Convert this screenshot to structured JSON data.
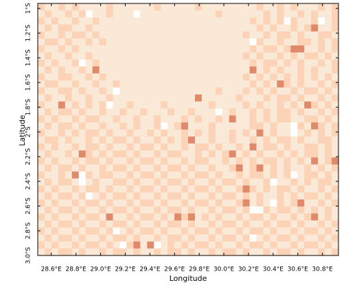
{
  "chart_data": {
    "type": "raster",
    "x_label": "Longitude",
    "y_label": "Latitude",
    "xlim": [
      28.49,
      30.93
    ],
    "ylim": [
      -3.0,
      -0.96
    ],
    "xticks": [
      {
        "value": 28.6,
        "label": "28.6°E"
      },
      {
        "value": 28.8,
        "label": "28.8°E"
      },
      {
        "value": 29.0,
        "label": "29.0°E"
      },
      {
        "value": 29.2,
        "label": "29.2°E"
      },
      {
        "value": 29.4,
        "label": "29.4°E"
      },
      {
        "value": 29.6,
        "label": "29.6°E"
      },
      {
        "value": 29.8,
        "label": "29.8°E"
      },
      {
        "value": 30.0,
        "label": "30.0°E"
      },
      {
        "value": 30.2,
        "label": "30.2°E"
      },
      {
        "value": 30.4,
        "label": "30.4°E"
      },
      {
        "value": 30.6,
        "label": "30.6°E"
      },
      {
        "value": 30.8,
        "label": "30.8°E"
      }
    ],
    "yticks": [
      {
        "value": -1,
        "label": "1°S"
      },
      {
        "value": -1.2,
        "label": "1.2°S"
      },
      {
        "value": -1.4,
        "label": "1.4°S"
      },
      {
        "value": -1.6,
        "label": "1.6°S"
      },
      {
        "value": -1.8,
        "label": "1.8°S"
      },
      {
        "value": -2,
        "label": "2°S"
      },
      {
        "value": -2.2,
        "label": "2.2°S"
      },
      {
        "value": -2.4,
        "label": "2.4°S"
      },
      {
        "value": -2.6,
        "label": "2.6°S"
      },
      {
        "value": -2.8,
        "label": "2.8°S"
      },
      {
        "value": -3.0,
        "label": "3.0°S"
      }
    ],
    "palette": [
      "#ffffff",
      "#fbe9d7",
      "#fcd3b6",
      "#e08a6c"
    ],
    "z": [
      [
        2,
        1,
        1,
        2,
        1,
        2,
        1,
        1,
        1,
        1,
        2,
        1,
        1,
        1,
        1,
        1,
        1,
        2,
        1,
        1,
        1,
        1,
        1,
        2,
        1,
        1,
        1,
        1,
        1,
        1,
        1,
        1,
        2,
        1,
        1,
        2,
        1,
        2,
        1,
        1,
        1,
        2,
        1,
        2
      ],
      [
        1,
        2,
        1,
        1,
        2,
        1,
        2,
        0,
        1,
        1,
        2,
        1,
        1,
        1,
        0,
        1,
        1,
        1,
        1,
        1,
        1,
        1,
        1,
        1,
        1,
        1,
        2,
        1,
        1,
        1,
        1,
        1,
        1,
        2,
        1,
        2,
        1,
        1,
        2,
        1,
        2,
        1,
        1,
        2
      ],
      [
        2,
        1,
        2,
        1,
        1,
        2,
        1,
        1,
        2,
        1,
        1,
        1,
        1,
        1,
        1,
        1,
        1,
        1,
        1,
        1,
        1,
        1,
        1,
        1,
        1,
        1,
        1,
        1,
        1,
        1,
        1,
        2,
        1,
        2,
        1,
        2,
        0,
        2,
        1,
        1,
        2,
        0,
        1,
        2
      ],
      [
        1,
        2,
        1,
        2,
        2,
        1,
        1,
        2,
        1,
        1,
        1,
        1,
        1,
        1,
        1,
        1,
        1,
        1,
        1,
        1,
        1,
        1,
        1,
        1,
        1,
        1,
        1,
        1,
        1,
        1,
        1,
        1,
        2,
        1,
        2,
        1,
        1,
        2,
        1,
        2,
        3,
        1,
        1,
        2
      ],
      [
        2,
        1,
        1,
        2,
        1,
        2,
        2,
        1,
        2,
        1,
        1,
        1,
        1,
        1,
        1,
        1,
        1,
        1,
        1,
        1,
        1,
        1,
        1,
        1,
        1,
        1,
        1,
        1,
        1,
        1,
        2,
        1,
        1,
        2,
        1,
        2,
        2,
        1,
        2,
        1,
        1,
        2,
        2,
        1
      ],
      [
        1,
        2,
        2,
        1,
        2,
        1,
        1,
        2,
        1,
        2,
        1,
        1,
        1,
        1,
        1,
        1,
        1,
        1,
        1,
        1,
        1,
        1,
        1,
        1,
        1,
        1,
        1,
        1,
        1,
        1,
        1,
        0,
        2,
        1,
        1,
        2,
        1,
        1,
        2,
        2,
        1,
        2,
        1,
        2
      ],
      [
        2,
        1,
        1,
        2,
        1,
        2,
        1,
        1,
        1,
        1,
        1,
        1,
        1,
        1,
        1,
        1,
        1,
        1,
        1,
        1,
        1,
        1,
        1,
        1,
        1,
        1,
        1,
        1,
        1,
        1,
        1,
        2,
        1,
        2,
        2,
        1,
        2,
        3,
        3,
        1,
        1,
        2,
        1,
        2
      ],
      [
        1,
        2,
        1,
        1,
        2,
        1,
        1,
        2,
        1,
        1,
        1,
        1,
        1,
        1,
        1,
        1,
        1,
        1,
        1,
        1,
        1,
        1,
        1,
        1,
        1,
        1,
        1,
        1,
        1,
        1,
        2,
        1,
        2,
        1,
        1,
        2,
        1,
        2,
        1,
        2,
        2,
        1,
        2,
        1
      ],
      [
        2,
        1,
        2,
        1,
        1,
        2,
        0,
        1,
        2,
        1,
        1,
        1,
        1,
        1,
        1,
        1,
        1,
        1,
        1,
        1,
        1,
        1,
        1,
        1,
        1,
        1,
        1,
        1,
        1,
        1,
        1,
        2,
        1,
        2,
        2,
        1,
        2,
        1,
        2,
        1,
        1,
        2,
        1,
        2
      ],
      [
        1,
        2,
        1,
        2,
        1,
        1,
        2,
        1,
        3,
        1,
        1,
        1,
        1,
        1,
        1,
        1,
        1,
        1,
        1,
        1,
        1,
        1,
        1,
        1,
        1,
        1,
        1,
        1,
        1,
        1,
        1,
        3,
        1,
        2,
        1,
        2,
        1,
        1,
        2,
        1,
        2,
        1,
        1,
        2
      ],
      [
        2,
        1,
        1,
        2,
        2,
        1,
        1,
        2,
        1,
        2,
        1,
        1,
        1,
        1,
        1,
        1,
        1,
        1,
        1,
        1,
        1,
        1,
        1,
        1,
        1,
        1,
        1,
        1,
        1,
        1,
        2,
        1,
        2,
        1,
        2,
        1,
        2,
        1,
        2,
        1,
        2,
        1,
        2,
        1
      ],
      [
        1,
        2,
        2,
        1,
        1,
        2,
        1,
        1,
        2,
        1,
        1,
        2,
        1,
        1,
        1,
        1,
        1,
        1,
        1,
        1,
        1,
        1,
        1,
        1,
        1,
        1,
        1,
        1,
        1,
        1,
        1,
        2,
        1,
        2,
        1,
        3,
        2,
        1,
        2,
        1,
        1,
        2,
        1,
        2
      ],
      [
        2,
        1,
        1,
        2,
        2,
        1,
        2,
        1,
        1,
        2,
        1,
        0,
        1,
        1,
        1,
        1,
        1,
        1,
        1,
        1,
        1,
        1,
        1,
        1,
        1,
        1,
        2,
        1,
        1,
        1,
        2,
        1,
        2,
        1,
        2,
        1,
        1,
        2,
        1,
        2,
        2,
        1,
        2,
        1
      ],
      [
        1,
        2,
        1,
        1,
        2,
        1,
        1,
        2,
        1,
        1,
        2,
        1,
        1,
        1,
        1,
        1,
        1,
        1,
        1,
        1,
        1,
        1,
        1,
        3,
        1,
        1,
        1,
        1,
        1,
        2,
        1,
        1,
        1,
        2,
        1,
        2,
        2,
        1,
        2,
        1,
        1,
        2,
        1,
        2
      ],
      [
        2,
        1,
        1,
        3,
        1,
        2,
        1,
        2,
        1,
        2,
        0,
        1,
        1,
        2,
        1,
        1,
        1,
        1,
        2,
        1,
        1,
        1,
        1,
        1,
        1,
        2,
        1,
        1,
        1,
        1,
        2,
        1,
        2,
        1,
        1,
        2,
        1,
        2,
        1,
        3,
        2,
        1,
        2,
        1
      ],
      [
        1,
        2,
        1,
        2,
        2,
        1,
        2,
        1,
        1,
        2,
        1,
        1,
        2,
        1,
        1,
        2,
        1,
        1,
        1,
        2,
        1,
        1,
        2,
        1,
        1,
        1,
        0,
        1,
        2,
        1,
        1,
        2,
        1,
        2,
        1,
        2,
        2,
        1,
        2,
        1,
        1,
        2,
        1,
        2
      ],
      [
        2,
        1,
        2,
        1,
        1,
        2,
        1,
        2,
        2,
        1,
        1,
        2,
        1,
        1,
        2,
        1,
        1,
        2,
        1,
        1,
        1,
        2,
        1,
        2,
        1,
        1,
        2,
        1,
        3,
        1,
        1,
        2,
        1,
        2,
        1,
        2,
        2,
        1,
        1,
        2,
        2,
        1,
        2,
        1
      ],
      [
        1,
        2,
        1,
        2,
        2,
        1,
        2,
        1,
        1,
        2,
        1,
        1,
        2,
        1,
        2,
        1,
        1,
        2,
        0,
        1,
        2,
        3,
        1,
        1,
        1,
        2,
        1,
        1,
        1,
        1,
        1,
        2,
        2,
        1,
        2,
        1,
        1,
        0,
        2,
        1,
        3,
        2,
        1,
        2
      ],
      [
        2,
        1,
        1,
        2,
        1,
        2,
        1,
        2,
        2,
        1,
        2,
        1,
        1,
        2,
        1,
        1,
        2,
        1,
        2,
        1,
        1,
        2,
        1,
        2,
        1,
        2,
        1,
        1,
        2,
        1,
        2,
        1,
        3,
        1,
        2,
        1,
        1,
        0,
        1,
        2,
        1,
        2,
        1,
        2
      ],
      [
        1,
        2,
        2,
        1,
        2,
        1,
        1,
        2,
        1,
        2,
        1,
        2,
        2,
        1,
        2,
        1,
        1,
        2,
        1,
        2,
        1,
        2,
        3,
        1,
        1,
        2,
        1,
        1,
        2,
        1,
        1,
        2,
        1,
        2,
        1,
        2,
        2,
        1,
        2,
        1,
        1,
        2,
        2,
        1
      ],
      [
        2,
        1,
        2,
        1,
        1,
        2,
        1,
        2,
        2,
        1,
        2,
        1,
        1,
        2,
        1,
        2,
        2,
        1,
        2,
        1,
        1,
        2,
        1,
        2,
        2,
        1,
        2,
        1,
        1,
        2,
        1,
        3,
        1,
        2,
        2,
        1,
        2,
        1,
        1,
        2,
        2,
        1,
        2,
        1
      ],
      [
        1,
        2,
        1,
        1,
        2,
        1,
        3,
        2,
        1,
        2,
        1,
        2,
        2,
        1,
        2,
        1,
        1,
        2,
        1,
        2,
        2,
        1,
        1,
        2,
        1,
        2,
        1,
        2,
        3,
        1,
        2,
        1,
        2,
        1,
        1,
        2,
        1,
        2,
        1,
        2,
        2,
        1,
        2,
        1
      ],
      [
        2,
        1,
        2,
        1,
        1,
        2,
        1,
        2,
        2,
        1,
        2,
        1,
        1,
        2,
        1,
        2,
        2,
        1,
        2,
        1,
        1,
        2,
        1,
        2,
        2,
        1,
        1,
        2,
        1,
        2,
        1,
        2,
        1,
        2,
        2,
        1,
        2,
        1,
        2,
        1,
        3,
        1,
        2,
        3
      ],
      [
        1,
        2,
        1,
        2,
        2,
        1,
        2,
        1,
        1,
        2,
        1,
        2,
        2,
        1,
        2,
        1,
        1,
        2,
        1,
        2,
        2,
        1,
        2,
        1,
        1,
        2,
        1,
        1,
        2,
        3,
        1,
        2,
        3,
        1,
        2,
        1,
        2,
        1,
        1,
        2,
        1,
        2,
        1,
        2
      ],
      [
        2,
        1,
        1,
        2,
        1,
        3,
        0,
        2,
        1,
        2,
        2,
        1,
        1,
        2,
        1,
        2,
        2,
        1,
        2,
        1,
        1,
        2,
        1,
        2,
        2,
        1,
        2,
        1,
        1,
        2,
        1,
        2,
        2,
        1,
        2,
        1,
        2,
        0,
        1,
        2,
        2,
        1,
        2,
        1
      ],
      [
        1,
        2,
        1,
        2,
        2,
        1,
        0,
        1,
        2,
        1,
        1,
        2,
        2,
        1,
        2,
        1,
        1,
        2,
        1,
        2,
        2,
        1,
        2,
        1,
        1,
        2,
        1,
        2,
        2,
        1,
        2,
        1,
        1,
        2,
        0,
        1,
        1,
        2,
        1,
        2,
        1,
        2,
        2,
        1
      ],
      [
        2,
        1,
        2,
        1,
        1,
        2,
        1,
        2,
        2,
        1,
        2,
        1,
        1,
        2,
        1,
        2,
        2,
        1,
        2,
        1,
        1,
        2,
        1,
        2,
        2,
        1,
        2,
        1,
        1,
        2,
        3,
        2,
        1,
        2,
        1,
        2,
        2,
        1,
        2,
        1,
        1,
        2,
        1,
        2
      ],
      [
        1,
        2,
        1,
        2,
        2,
        1,
        2,
        0,
        1,
        2,
        1,
        2,
        2,
        1,
        2,
        1,
        1,
        2,
        1,
        2,
        2,
        1,
        2,
        1,
        1,
        2,
        1,
        2,
        2,
        1,
        2,
        1,
        2,
        1,
        1,
        2,
        1,
        2,
        1,
        2,
        2,
        1,
        2,
        1
      ],
      [
        2,
        1,
        2,
        1,
        1,
        2,
        1,
        2,
        2,
        1,
        2,
        1,
        1,
        2,
        1,
        2,
        2,
        1,
        2,
        1,
        1,
        2,
        1,
        2,
        2,
        1,
        2,
        1,
        1,
        2,
        3,
        1,
        2,
        1,
        0,
        2,
        1,
        2,
        3,
        1,
        1,
        2,
        1,
        2
      ],
      [
        1,
        2,
        1,
        2,
        2,
        1,
        2,
        1,
        1,
        2,
        1,
        2,
        2,
        1,
        2,
        1,
        1,
        2,
        1,
        2,
        2,
        1,
        2,
        1,
        1,
        2,
        1,
        2,
        2,
        1,
        2,
        0,
        0,
        2,
        1,
        2,
        2,
        1,
        2,
        1,
        2,
        1,
        2,
        1
      ],
      [
        2,
        1,
        2,
        1,
        1,
        2,
        1,
        2,
        2,
        1,
        3,
        1,
        1,
        2,
        1,
        2,
        2,
        1,
        2,
        1,
        3,
        2,
        3,
        1,
        2,
        1,
        2,
        1,
        1,
        2,
        1,
        2,
        2,
        1,
        2,
        1,
        1,
        2,
        1,
        2,
        3,
        1,
        2,
        1
      ],
      [
        1,
        2,
        1,
        2,
        2,
        1,
        2,
        1,
        1,
        2,
        1,
        2,
        2,
        1,
        2,
        1,
        1,
        2,
        1,
        2,
        2,
        1,
        2,
        1,
        1,
        2,
        1,
        2,
        2,
        1,
        2,
        1,
        1,
        2,
        1,
        2,
        2,
        1,
        2,
        1,
        1,
        2,
        1,
        2
      ],
      [
        2,
        1,
        2,
        1,
        1,
        2,
        1,
        2,
        2,
        1,
        2,
        0,
        1,
        2,
        1,
        2,
        2,
        1,
        2,
        1,
        1,
        2,
        1,
        2,
        2,
        1,
        2,
        1,
        1,
        2,
        1,
        2,
        2,
        1,
        2,
        1,
        1,
        2,
        1,
        2,
        2,
        1,
        2,
        1
      ],
      [
        1,
        2,
        1,
        2,
        2,
        1,
        2,
        1,
        1,
        2,
        1,
        2,
        2,
        1,
        2,
        1,
        1,
        2,
        1,
        2,
        2,
        1,
        2,
        1,
        1,
        2,
        1,
        2,
        2,
        1,
        2,
        0,
        1,
        2,
        1,
        2,
        2,
        1,
        2,
        1,
        1,
        2,
        1,
        2
      ],
      [
        2,
        1,
        2,
        1,
        1,
        2,
        1,
        2,
        2,
        1,
        2,
        1,
        0,
        2,
        3,
        1,
        3,
        0,
        1,
        2,
        1,
        2,
        1,
        2,
        2,
        1,
        2,
        1,
        1,
        2,
        1,
        2,
        2,
        1,
        2,
        1,
        1,
        2,
        1,
        2,
        2,
        1,
        2,
        1
      ],
      [
        1,
        2,
        1,
        2,
        2,
        1,
        2,
        1,
        1,
        2,
        1,
        2,
        2,
        1,
        2,
        1,
        1,
        2,
        1,
        2,
        2,
        1,
        2,
        1,
        1,
        2,
        1,
        2,
        2,
        1,
        2,
        1,
        1,
        2,
        1,
        2,
        2,
        1,
        2,
        1,
        1,
        2,
        1,
        2
      ]
    ]
  }
}
